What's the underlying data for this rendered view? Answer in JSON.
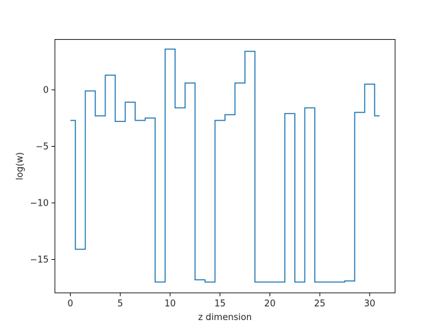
{
  "chart_data": {
    "type": "line",
    "drawstyle": "steps-mid",
    "title": "",
    "xlabel": "z dimension",
    "ylabel": "log(w)",
    "xlim": [
      -1.55,
      32.55
    ],
    "ylim": [
      -17.95,
      4.45
    ],
    "xticks": [
      0,
      5,
      10,
      15,
      20,
      25,
      30
    ],
    "yticks": [
      -15,
      -10,
      -5,
      0
    ],
    "ytick_labels": [
      "−15",
      "−10",
      "−5",
      "0"
    ],
    "grid": false,
    "line_color": "#1f77b4",
    "series": [
      {
        "name": "",
        "x": [
          0,
          1,
          2,
          3,
          4,
          5,
          6,
          7,
          8,
          9,
          10,
          11,
          12,
          13,
          14,
          15,
          16,
          17,
          18,
          19,
          20,
          21,
          22,
          23,
          24,
          25,
          26,
          27,
          28,
          29,
          30,
          31
        ],
        "y": [
          -2.7,
          -14.1,
          -0.1,
          -2.3,
          1.3,
          -2.8,
          -1.1,
          -2.7,
          -2.5,
          -17.0,
          3.6,
          -1.6,
          0.6,
          -16.8,
          -17.0,
          -2.7,
          -2.2,
          0.6,
          3.4,
          -17.0,
          -17.0,
          -17.0,
          -2.1,
          -17.0,
          -1.6,
          -17.0,
          -17.0,
          -17.0,
          -16.9,
          -2.0,
          0.5,
          -2.3
        ]
      }
    ]
  }
}
